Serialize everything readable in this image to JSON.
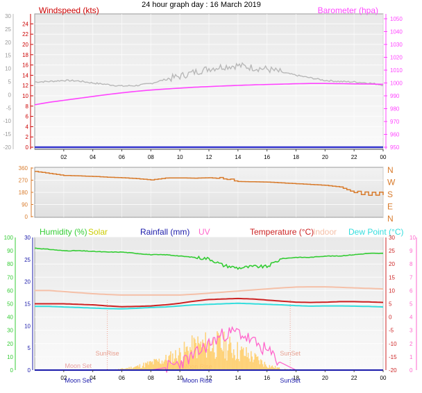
{
  "page_title": "24 hour graph day : 16 March 2019",
  "chart_data": [
    {
      "type": "line",
      "id": "wind-baro",
      "left_axis_label": "Windspeed (kts)",
      "right_axis_label": "Barometer (hpa)",
      "y_left_ticks": [
        "24",
        "22",
        "20",
        "18",
        "16",
        "14",
        "12",
        "10",
        "8",
        "6",
        "4",
        "2",
        "0"
      ],
      "y_outer_left_ticks": [
        "30",
        "25",
        "20",
        "15",
        "10",
        "5",
        "0",
        "-5",
        "-10",
        "-15",
        "-20"
      ],
      "y_right_ticks": [
        "1050",
        "1040",
        "1030",
        "1020",
        "1010",
        "1000",
        "990",
        "980",
        "970",
        "960",
        "950"
      ],
      "ylim_left": [
        0,
        25
      ],
      "ylim_right": [
        950,
        1050
      ],
      "x_hours": [
        0,
        1,
        2,
        3,
        4,
        5,
        6,
        7,
        8,
        9,
        10,
        11,
        12,
        13,
        14,
        15,
        16,
        17,
        18,
        19,
        20,
        21,
        22,
        23,
        24
      ],
      "series": [
        {
          "values": [
            12.7,
            12.8,
            13.0,
            12.9,
            12.5,
            12.2,
            11.9,
            12.0,
            12.4,
            13.2,
            13.8,
            14.6,
            15.3,
            15.7,
            15.9,
            15.5,
            15.2,
            14.6,
            14.0,
            13.5,
            13.0,
            12.8,
            12.7,
            12.5,
            12.1
          ]
        },
        {
          "values": [
            983,
            985,
            986.5,
            988,
            989.5,
            991,
            992.3,
            993.5,
            994.5,
            995.3,
            996,
            996.7,
            997.2,
            997.7,
            998.1,
            998.5,
            998.8,
            999.1,
            999.4,
            999.6,
            999.6,
            999.5,
            999.3,
            999.2,
            999.0
          ]
        },
        {
          "values": [
            0,
            0,
            0,
            0,
            0,
            0,
            0,
            0,
            0,
            0,
            0,
            0,
            0,
            0,
            0,
            0,
            0,
            0,
            0,
            0,
            0,
            0,
            0,
            0,
            0
          ]
        }
      ]
    },
    {
      "type": "line",
      "id": "wind-direction",
      "y_ticks": [
        "360",
        "270",
        "180",
        "90",
        "0"
      ],
      "y_right_labels": [
        "N",
        "W",
        "S",
        "E",
        "N"
      ],
      "ylim": [
        0,
        360
      ],
      "x_hours": [
        0,
        1,
        2,
        3,
        4,
        5,
        6,
        7,
        8,
        9,
        10,
        11,
        12,
        13,
        14,
        15,
        16,
        17,
        18,
        19,
        20,
        21,
        22,
        23,
        24
      ],
      "series": [
        {
          "values": [
            335,
            320,
            305,
            302,
            298,
            292,
            288,
            282,
            272,
            286,
            287,
            285,
            288,
            280,
            260,
            258,
            256,
            250,
            244,
            238,
            232,
            220,
            178,
            168,
            170
          ]
        }
      ]
    },
    {
      "type": "line",
      "id": "temp-humidity-solar",
      "legend": [
        "Humidity (%)",
        "Solar",
        "Rainfall (mm)",
        "UV",
        "Temperature (°C)",
        "Indoor",
        "Dew Point (°C)"
      ],
      "y_humidity_ticks": [
        "100",
        "90",
        "80",
        "70",
        "60",
        "50",
        "40",
        "30",
        "20",
        "10",
        "0"
      ],
      "y_rain_ticks": [
        "30",
        "25",
        "20",
        "15",
        "10",
        "5",
        "0"
      ],
      "y_uv_ticks": [
        "10",
        "9",
        "8",
        "7",
        "6",
        "5",
        "4",
        "3",
        "2",
        "1",
        "0"
      ],
      "y_temp_ticks": [
        "30",
        "25",
        "20",
        "15",
        "10",
        "5",
        "0",
        "-5",
        "-10",
        "-15",
        "-20"
      ],
      "ylim_humidity": [
        0,
        100
      ],
      "ylim_temperature": [
        -20,
        30
      ],
      "ylim_uv": [
        0,
        10
      ],
      "annotations": [
        "Moon Set",
        "SunRise",
        "Moon Rise",
        "SunSet"
      ],
      "x_hours": [
        0,
        1,
        2,
        3,
        4,
        5,
        6,
        7,
        8,
        9,
        10,
        11,
        12,
        13,
        14,
        15,
        16,
        17,
        18,
        19,
        20,
        21,
        22,
        23,
        24
      ],
      "series": [
        {
          "values": [
            92,
            91,
            90,
            90,
            89.5,
            89,
            89,
            88,
            87,
            87,
            86,
            85,
            84,
            79,
            77,
            78,
            78,
            84,
            85,
            85,
            86,
            86,
            87,
            88,
            88
          ]
        },
        {
          "values": [
            10.0,
            10.0,
            9.6,
            9.2,
            8.8,
            8.5,
            8.3,
            8.3,
            8.3,
            8.3,
            8.3,
            8.6,
            9.0,
            9.4,
            9.8,
            10.2,
            10.6,
            11.0,
            11.3,
            11.4,
            11.4,
            11.2,
            11.0,
            10.8,
            10.6
          ]
        },
        {
          "values": [
            5.0,
            5.0,
            5.0,
            4.8,
            4.6,
            4.2,
            3.9,
            4.0,
            4.2,
            4.6,
            5.2,
            6.0,
            6.6,
            6.8,
            7.0,
            6.8,
            6.4,
            6.0,
            5.6,
            5.5,
            5.6,
            5.8,
            5.8,
            5.7,
            5.5
          ]
        },
        {
          "values": [
            4.0,
            4.0,
            3.8,
            3.6,
            3.4,
            3.2,
            3.1,
            3.3,
            3.6,
            3.8,
            4.2,
            4.6,
            4.8,
            5.0,
            5.2,
            5.0,
            4.8,
            4.6,
            4.3,
            4.1,
            4.2,
            4.2,
            4.1,
            4.0,
            3.8
          ]
        },
        {
          "values": [
            0,
            0,
            0,
            0,
            0,
            0,
            0.1,
            0.3,
            0.6,
            0.9,
            1.4,
            2.0,
            2.2,
            2.1,
            1.6,
            1.1,
            0.4,
            0.1,
            0,
            0,
            0,
            0,
            0,
            0,
            0
          ]
        },
        {
          "values": [
            0,
            0,
            0,
            0,
            0,
            0,
            0,
            0,
            0,
            0.1,
            0.3,
            0.6,
            1.1,
            1.5,
            1.6,
            1.2,
            0.8,
            0.3,
            0,
            0,
            0,
            0,
            0,
            0,
            0
          ]
        }
      ]
    }
  ],
  "x_tick_labels": [
    "02",
    "04",
    "06",
    "08",
    "10",
    "12",
    "14",
    "16",
    "18",
    "20",
    "22",
    "00"
  ],
  "colors": {
    "windspeed_label": "#cc0000",
    "barometer": "#ff44ff",
    "wind_avg": "#b8b8b8",
    "wind_gust": "#3333cc",
    "direction": "#d87a2a",
    "humidity": "#33cc33",
    "solar_label": "#cccc00",
    "solar_fill": "#ffcc66",
    "rainfall": "#1a1aaa",
    "uv": "#ff66cc",
    "temperature": "#cc2222",
    "indoor": "#f5c0a8",
    "dewpoint": "#33dddd"
  }
}
